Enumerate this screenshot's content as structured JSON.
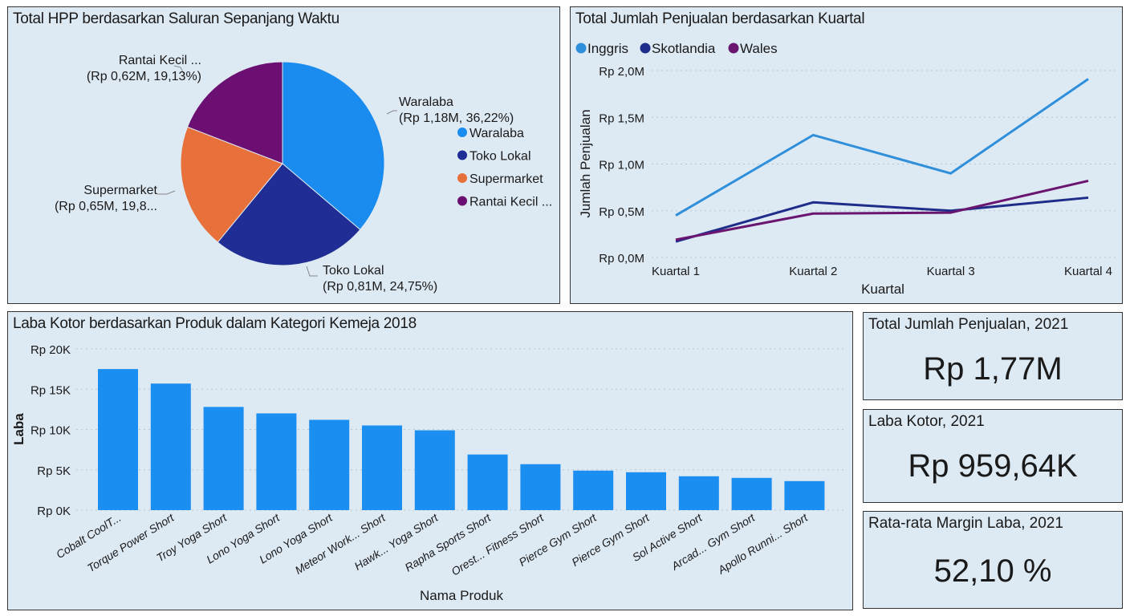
{
  "colors": {
    "panel_bg": "#dde9f3",
    "bar": "#1b8ef2"
  },
  "pie_panel": {
    "title": "Total HPP berdasarkan Saluran Sepanjang Waktu"
  },
  "line_panel": {
    "title": "Total Jumlah Penjualan berdasarkan Kuartal"
  },
  "bar_panel": {
    "title": "Laba Kotor berdasarkan Produk dalam Kategori Kemeja 2018"
  },
  "kpis": [
    {
      "title": "Total Jumlah Penjualan, 2021",
      "value": "Rp 1,77M"
    },
    {
      "title": "Laba Kotor, 2021",
      "value": "Rp 959,64K"
    },
    {
      "title": "Rata-rata Margin Laba, 2021",
      "value": "52,10 %"
    }
  ],
  "chart_data": [
    {
      "type": "pie",
      "title": "Total HPP berdasarkan Saluran Sepanjang Waktu",
      "legend_position": "right",
      "slices": [
        {
          "name": "Waralaba",
          "legend": "Waralaba",
          "percent": 36.22,
          "label_line1": "Waralaba",
          "label_line2": "(Rp 1,18M, 36,22%)",
          "color": "#1a8cf0"
        },
        {
          "name": "Toko Lokal",
          "legend": "Toko Lokal",
          "percent": 24.75,
          "label_line1": "Toko Lokal",
          "label_line2": "(Rp 0,81M, 24,75%)",
          "color": "#1f2d94"
        },
        {
          "name": "Supermarket",
          "legend": "Supermarket",
          "percent": 19.9,
          "label_line1": "Supermarket",
          "label_line2": "(Rp 0,65M, 19,8...",
          "color": "#e8703a"
        },
        {
          "name": "Rantai Kecil",
          "legend": "Rantai Kecil ...",
          "percent": 19.13,
          "label_line1": "Rantai Kecil ...",
          "label_line2": "(Rp 0,62M, 19,13%)",
          "color": "#6b0f72"
        }
      ]
    },
    {
      "type": "line",
      "title": "Total Jumlah Penjualan berdasarkan Kuartal",
      "xlabel": "Kuartal",
      "ylabel": "Jumlah Penjualan",
      "categories": [
        "Kuartal 1",
        "Kuartal 2",
        "Kuartal 3",
        "Kuartal 4"
      ],
      "ylim": [
        0,
        2.0
      ],
      "yticks": [
        0,
        0.5,
        1.0,
        1.5,
        2.0
      ],
      "ytick_labels": [
        "Rp 0,0M",
        "Rp 0,5M",
        "Rp 1,0M",
        "Rp 1,5M",
        "Rp 2,0M"
      ],
      "grid": true,
      "legend_position": "top-left",
      "series": [
        {
          "name": "Inggris",
          "color": "#2f8fdb",
          "values": [
            0.45,
            1.31,
            0.9,
            1.91
          ]
        },
        {
          "name": "Skotlandia",
          "color": "#1f2d8a",
          "values": [
            0.17,
            0.59,
            0.5,
            0.64
          ]
        },
        {
          "name": "Wales",
          "color": "#6a1570",
          "values": [
            0.19,
            0.47,
            0.48,
            0.82
          ]
        }
      ]
    },
    {
      "type": "bar",
      "title": "Laba Kotor berdasarkan Produk dalam Kategori Kemeja 2018",
      "xlabel": "Nama Produk",
      "ylabel": "Laba",
      "ylim": [
        0,
        20000
      ],
      "yticks": [
        0,
        5000,
        10000,
        15000,
        20000
      ],
      "ytick_labels": [
        "Rp 0K",
        "Rp 5K",
        "Rp 10K",
        "Rp 15K",
        "Rp 20K"
      ],
      "grid": true,
      "categories": [
        "Cobalt CoolT...",
        "Torque Power Short",
        "Troy Yoga Short",
        "Lono Yoga Short",
        "Lono Yoga Short",
        "Meteor Work... Short",
        "Hawk... Yoga Short",
        "Rapha Sports Short",
        "Orest... Fitness Short",
        "Pierce Gym Short",
        "Pierce Gym Short",
        "Sol Active Short",
        "Arcad... Gym Short",
        "Apollo Runni... Short"
      ],
      "values": [
        17500,
        15700,
        12800,
        12000,
        11200,
        10500,
        9900,
        6900,
        5700,
        4900,
        4700,
        4200,
        4000,
        3600
      ]
    }
  ]
}
